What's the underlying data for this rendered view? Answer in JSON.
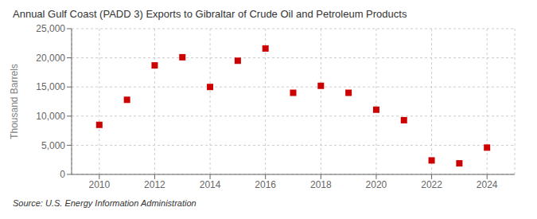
{
  "chart_data": {
    "type": "scatter",
    "title": "Annual Gulf Coast (PADD 3) Exports to Gibraltar of Crude Oil and Petroleum Products",
    "ylabel": "Thousand Barrels",
    "annotations": [
      "Source: U.S. Energy Information Administration"
    ],
    "x": [
      2010,
      2011,
      2012,
      2013,
      2014,
      2015,
      2016,
      2017,
      2018,
      2019,
      2020,
      2021,
      2022,
      2023,
      2024
    ],
    "values": [
      8500,
      12800,
      18700,
      20100,
      15000,
      19500,
      21600,
      14000,
      15200,
      14000,
      11100,
      9300,
      2400,
      1900,
      4600
    ],
    "color": "#cc0000",
    "marker": "square",
    "xlim": [
      2009,
      2025
    ],
    "xticks": [
      2010,
      2012,
      2014,
      2016,
      2018,
      2020,
      2022,
      2024
    ],
    "ylim": [
      0,
      25000
    ],
    "yticks": [
      0,
      {
        "value": 5000,
        "label": "5,000"
      },
      {
        "value": 10000,
        "label": "10,000"
      },
      {
        "value": 15000,
        "label": "15,000"
      },
      {
        "value": 20000,
        "label": "20,000"
      },
      {
        "value": 25000,
        "label": "25,000"
      }
    ],
    "grid": true
  }
}
